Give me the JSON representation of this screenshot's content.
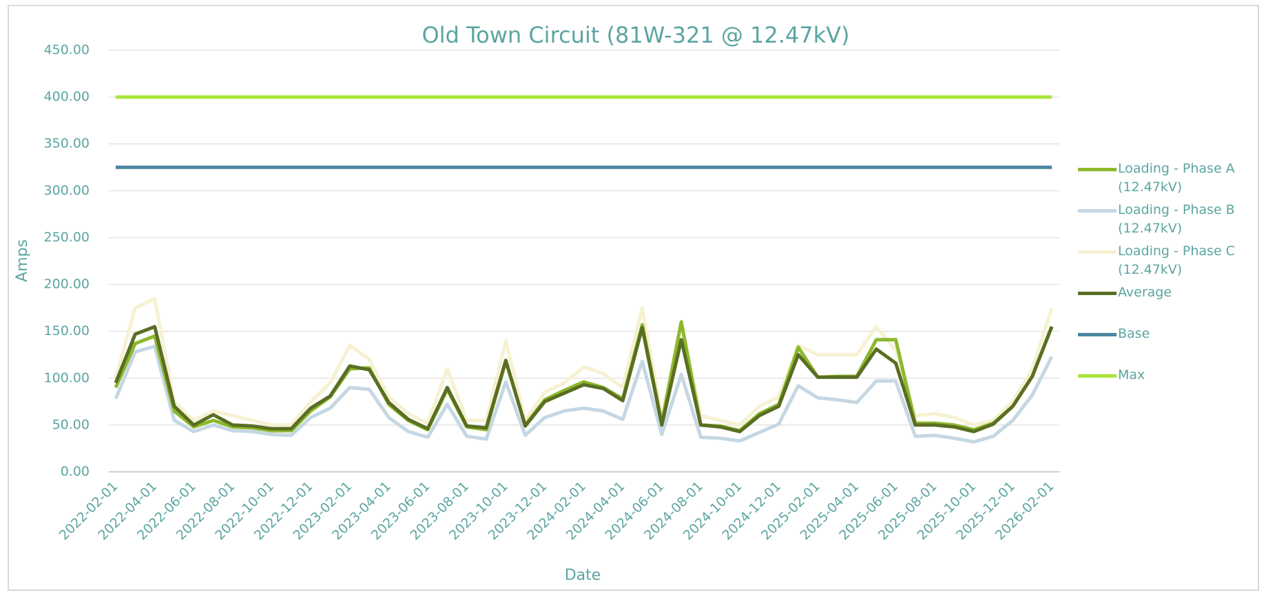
{
  "chart_data": {
    "type": "line",
    "title": "Old Town Circuit (81W-321 @ 12.47kV)",
    "x_label": "Date",
    "y_label": "Amps",
    "categories": [
      "2022-02-01",
      null,
      "2022-04-01",
      null,
      "2022-06-01",
      null,
      "2022-08-01",
      null,
      "2022-10-01",
      null,
      "2022-12-01",
      null,
      "2023-02-01",
      null,
      "2023-04-01",
      null,
      "2023-06-01",
      null,
      "2023-08-01",
      null,
      "2023-10-01",
      null,
      "2023-12-01",
      null,
      "2024-02-01",
      null,
      "2024-04-01",
      null,
      "2024-06-01",
      null,
      "2024-08-01",
      null,
      "2024-10-01",
      null,
      "2024-12-01",
      null,
      "2025-02-01",
      null,
      "2025-04-01",
      null,
      "2025-06-01",
      null,
      "2025-08-01",
      null,
      "2025-10-01",
      null,
      "2025-12-01",
      null,
      "2026-02-01"
    ],
    "series": [
      {
        "name": "Loading - Phase C (12.47kV)",
        "color": "#f6f1d2",
        "values": [
          100,
          175,
          185,
          75,
          55,
          65,
          60,
          55,
          50,
          50,
          75,
          95,
          135,
          120,
          80,
          62,
          52,
          110,
          55,
          55,
          140,
          55,
          85,
          95,
          112,
          105,
          90,
          175,
          60,
          160,
          60,
          55,
          50,
          70,
          80,
          135,
          125,
          125,
          125,
          155,
          130,
          60,
          62,
          58,
          50,
          55,
          75,
          110,
          175
        ]
      },
      {
        "name": "Loading - Phase B (12.47kV)",
        "color": "#c5d7e3",
        "values": [
          78,
          128,
          134,
          55,
          43,
          50,
          44,
          43,
          40,
          39,
          58,
          68,
          90,
          88,
          58,
          43,
          37,
          72,
          38,
          35,
          96,
          39,
          58,
          65,
          68,
          65,
          56,
          118,
          40,
          104,
          37,
          36,
          33,
          42,
          51,
          92,
          79,
          77,
          74,
          97,
          97,
          38,
          39,
          36,
          32,
          38,
          55,
          82,
          123
        ]
      },
      {
        "name": "Loading - Phase A (12.47kV)",
        "color": "#8cb82c",
        "values": [
          90,
          137,
          145,
          65,
          48,
          55,
          48,
          47,
          44,
          44,
          65,
          80,
          110,
          111,
          72,
          55,
          45,
          88,
          48,
          45,
          118,
          50,
          77,
          87,
          96,
          90,
          78,
          157,
          52,
          160,
          50,
          49,
          44,
          62,
          72,
          133,
          101,
          102,
          102,
          141,
          141,
          52,
          52,
          50,
          45,
          52,
          70,
          102,
          155
        ]
      },
      {
        "name": "Average",
        "color": "#5a6e23",
        "values": [
          95,
          147,
          155,
          70,
          50,
          61,
          50,
          49,
          46,
          46,
          68,
          81,
          113,
          109,
          74,
          56,
          46,
          90,
          49,
          47,
          119,
          49,
          75,
          84,
          93,
          89,
          76,
          154,
          50,
          141,
          50,
          48,
          43,
          60,
          70,
          125,
          101,
          101,
          101,
          131,
          116,
          50,
          50,
          48,
          43,
          51,
          70,
          102,
          155
        ]
      },
      {
        "name": "Base",
        "color": "#4a86a0",
        "values": [
          325,
          325,
          325,
          325,
          325,
          325,
          325,
          325,
          325,
          325,
          325,
          325,
          325,
          325,
          325,
          325,
          325,
          325,
          325,
          325,
          325,
          325,
          325,
          325,
          325,
          325,
          325,
          325,
          325,
          325,
          325,
          325,
          325,
          325,
          325,
          325,
          325,
          325,
          325,
          325,
          325,
          325,
          325,
          325,
          325,
          325,
          325,
          325,
          325
        ]
      },
      {
        "name": "Max",
        "color": "#a9e53a",
        "values": [
          400,
          400,
          400,
          400,
          400,
          400,
          400,
          400,
          400,
          400,
          400,
          400,
          400,
          400,
          400,
          400,
          400,
          400,
          400,
          400,
          400,
          400,
          400,
          400,
          400,
          400,
          400,
          400,
          400,
          400,
          400,
          400,
          400,
          400,
          400,
          400,
          400,
          400,
          400,
          400,
          400,
          400,
          400,
          400,
          400,
          400,
          400,
          400,
          400
        ]
      }
    ],
    "legend_order": [
      2,
      1,
      0,
      3,
      4,
      5
    ],
    "ylim": [
      0,
      450
    ],
    "yticks": [
      {
        "value": 0,
        "label": "0.00"
      },
      {
        "value": 50,
        "label": "50.00"
      },
      {
        "value": 100,
        "label": "100.00"
      },
      {
        "value": 150,
        "label": "150.00"
      },
      {
        "value": 200,
        "label": "200.00"
      },
      {
        "value": 250,
        "label": "250.00"
      },
      {
        "value": 300,
        "label": "300.00"
      },
      {
        "value": 350,
        "label": "350.00"
      },
      {
        "value": 400,
        "label": "400.00"
      },
      {
        "value": 450,
        "label": "450.00"
      }
    ],
    "grid": true,
    "legend": "right"
  }
}
